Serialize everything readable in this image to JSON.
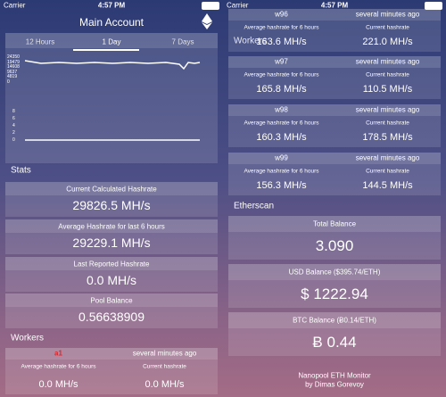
{
  "left": {
    "status": {
      "carrier": "Carrier",
      "time": "4:57 PM"
    },
    "title": "Main Account",
    "tabs": [
      "12 Hours",
      "1 Day",
      "7 Days"
    ],
    "chart_top_ticks": [
      "24350",
      "19479",
      "14608",
      "9637",
      "4819",
      "0"
    ],
    "chart_bottom_ticks": [
      "8",
      "6",
      "4",
      "2",
      "0"
    ],
    "stats_heading": "Stats",
    "stats": [
      {
        "label": "Current Calculated Hashrate",
        "value": "29826.5 MH/s"
      },
      {
        "label": "Average Hashrate for last 6 hours",
        "value": "29229.1 MH/s"
      },
      {
        "label": "Last Reported Hashrate",
        "value": "0.0 MH/s"
      },
      {
        "label": "Pool Balance",
        "value": "0.56638909"
      }
    ],
    "workers_heading": "Workers",
    "workers": [
      {
        "name": "a1",
        "updated": "several minutes ago",
        "avg_label": "Average hashrate for 6 hours",
        "avg": "0.0 MH/s",
        "current_label": "Current hashrate",
        "current": "0.0 MH/s"
      }
    ]
  },
  "right": {
    "status": {
      "carrier": "Carrier",
      "time": "4:57 PM"
    },
    "workers_heading": "Workers",
    "workers": [
      {
        "name": "w96",
        "updated": "several minutes ago",
        "avg_label": "Average hashrate for 6 hours",
        "avg": "163.6 MH/s",
        "current_label": "Current hashrate",
        "current": "221.0 MH/s"
      },
      {
        "name": "w97",
        "updated": "several minutes ago",
        "avg_label": "Average hashrate for 6 hours",
        "avg": "165.8 MH/s",
        "current_label": "Current hashrate",
        "current": "110.5 MH/s"
      },
      {
        "name": "w98",
        "updated": "several minutes ago",
        "avg_label": "Average hashrate for 6 hours",
        "avg": "160.3 MH/s",
        "current_label": "Current hashrate",
        "current": "178.5 MH/s"
      },
      {
        "name": "w99",
        "updated": "several minutes ago",
        "avg_label": "Average hashrate for 6 hours",
        "avg": "156.3 MH/s",
        "current_label": "Current hashrate",
        "current": "144.5 MH/s"
      }
    ],
    "etherscan_heading": "Etherscan",
    "balances": [
      {
        "label": "Total Balance",
        "value": "3.090"
      },
      {
        "label": "USD Balance  ($395.74/ETH)",
        "value": "$ 1222.94"
      },
      {
        "label": "BTC Balance  (Ƀ0.14/ETH)",
        "value": "Ƀ 0.44"
      }
    ],
    "footer": [
      "Nanopool ETH Monitor",
      "by Dimas Gorevoy"
    ]
  }
}
